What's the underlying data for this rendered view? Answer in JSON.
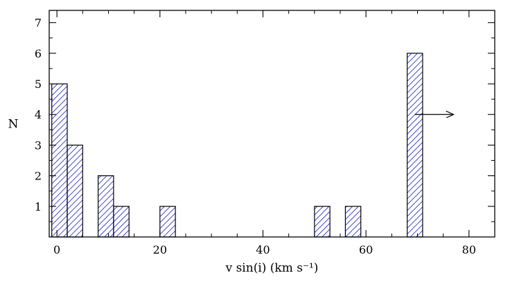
{
  "chart_data": {
    "type": "bar",
    "xlabel": "v sin(i) (km s⁻¹)",
    "ylabel": "N",
    "xlim": [
      -1.5,
      85
    ],
    "ylim": [
      0,
      7.4
    ],
    "x_ticks": [
      0,
      20,
      40,
      60,
      80
    ],
    "y_ticks": [
      1,
      2,
      3,
      4,
      5,
      6,
      7
    ],
    "x_tick_labels": [
      "0",
      "20",
      "40",
      "60",
      "80"
    ],
    "y_tick_labels": [
      "1",
      "2",
      "3",
      "4",
      "5",
      "6",
      "7"
    ],
    "grid": false,
    "bars": [
      {
        "x0": -1,
        "x1": 2,
        "value": 5
      },
      {
        "x0": 2,
        "x1": 5,
        "value": 3
      },
      {
        "x0": 8,
        "x1": 11,
        "value": 2
      },
      {
        "x0": 11,
        "x1": 14,
        "value": 1
      },
      {
        "x0": 20,
        "x1": 23,
        "value": 1
      },
      {
        "x0": 50,
        "x1": 53,
        "value": 1
      },
      {
        "x0": 56,
        "x1": 59,
        "value": 1
      },
      {
        "x0": 68,
        "x1": 71,
        "value": 6
      }
    ],
    "annotation": {
      "type": "arrow",
      "from": [
        69.5,
        4
      ],
      "to": [
        77,
        4
      ]
    },
    "fill_style": "diagonal-hatch",
    "hatch_color": "#1a1acc",
    "edge_color": "#000000"
  }
}
